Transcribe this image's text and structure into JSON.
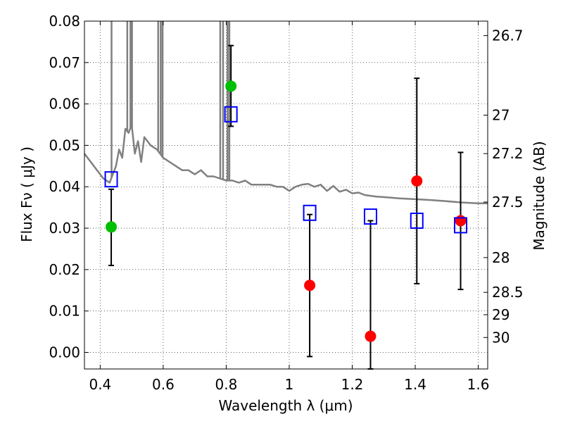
{
  "chart_data": {
    "type": "scatter",
    "xlabel": "Wavelength  λ (μm)",
    "ylabel": "Flux  Fν  ( μJy )",
    "ylabel_right": "Magnitude (AB)",
    "xlim": [
      0.35,
      1.63
    ],
    "ylim": [
      -0.004,
      0.08
    ],
    "grid": true,
    "x_ticks": [
      {
        "value": 0.4,
        "label": "0.4"
      },
      {
        "value": 0.6,
        "label": "0.6"
      },
      {
        "value": 0.8,
        "label": "0.8"
      },
      {
        "value": 1.0,
        "label": "1"
      },
      {
        "value": 1.2,
        "label": "1.2"
      },
      {
        "value": 1.4,
        "label": "1.4"
      },
      {
        "value": 1.6,
        "label": "1.6"
      }
    ],
    "y_ticks": [
      {
        "value": 0.0,
        "label": "0.00"
      },
      {
        "value": 0.01,
        "label": "0.01"
      },
      {
        "value": 0.02,
        "label": "0.02"
      },
      {
        "value": 0.03,
        "label": "0.03"
      },
      {
        "value": 0.04,
        "label": "0.04"
      },
      {
        "value": 0.05,
        "label": "0.05"
      },
      {
        "value": 0.06,
        "label": "0.06"
      },
      {
        "value": 0.07,
        "label": "0.07"
      },
      {
        "value": 0.08,
        "label": "0.08"
      }
    ],
    "right_ticks": [
      {
        "flux": 0.0765,
        "label": "26.7"
      },
      {
        "flux": 0.0573,
        "label": "27"
      },
      {
        "flux": 0.048,
        "label": "27.2"
      },
      {
        "flux": 0.0363,
        "label": "27.5"
      },
      {
        "flux": 0.0229,
        "label": "28"
      },
      {
        "flux": 0.0145,
        "label": "28.5"
      },
      {
        "flux": 0.0091,
        "label": "29"
      },
      {
        "flux": 0.0036,
        "label": "30"
      }
    ],
    "model_spectrum": {
      "color": "#808080",
      "x": [
        0.35,
        0.37,
        0.39,
        0.41,
        0.43,
        0.44,
        0.45,
        0.46,
        0.47,
        0.48,
        0.49,
        0.5,
        0.51,
        0.52,
        0.53,
        0.54,
        0.55,
        0.56,
        0.58,
        0.6,
        0.62,
        0.64,
        0.66,
        0.68,
        0.7,
        0.72,
        0.74,
        0.76,
        0.78,
        0.8,
        0.82,
        0.84,
        0.86,
        0.88,
        0.9,
        0.92,
        0.94,
        0.96,
        0.98,
        1.0,
        1.02,
        1.04,
        1.06,
        1.08,
        1.1,
        1.12,
        1.14,
        1.16,
        1.18,
        1.2,
        1.22,
        1.24,
        1.26,
        1.28,
        1.3,
        1.35,
        1.4,
        1.45,
        1.5,
        1.55,
        1.6,
        1.63
      ],
      "y": [
        0.048,
        0.046,
        0.044,
        0.042,
        0.041,
        0.043,
        0.045,
        0.049,
        0.047,
        0.054,
        0.053,
        0.055,
        0.048,
        0.051,
        0.046,
        0.052,
        0.051,
        0.05,
        0.049,
        0.047,
        0.046,
        0.045,
        0.044,
        0.044,
        0.043,
        0.044,
        0.0425,
        0.0425,
        0.042,
        0.0415,
        0.0415,
        0.041,
        0.0415,
        0.0405,
        0.0405,
        0.0405,
        0.0405,
        0.04,
        0.04,
        0.039,
        0.04,
        0.0405,
        0.0407,
        0.04,
        0.0405,
        0.039,
        0.0402,
        0.0388,
        0.0393,
        0.0384,
        0.0386,
        0.038,
        0.0378,
        0.0376,
        0.0375,
        0.0372,
        0.037,
        0.0368,
        0.0365,
        0.0362,
        0.036,
        0.036
      ],
      "spikes": [
        {
          "x": 0.436,
          "y_top": 0.08
        },
        {
          "x": 0.486,
          "y_top": 0.08
        },
        {
          "x": 0.496,
          "y_top": 0.08
        },
        {
          "x": 0.501,
          "y_top": 0.08
        },
        {
          "x": 0.584,
          "y_top": 0.08
        },
        {
          "x": 0.592,
          "y_top": 0.08
        },
        {
          "x": 0.598,
          "y_top": 0.08
        },
        {
          "x": 0.781,
          "y_top": 0.08
        },
        {
          "x": 0.79,
          "y_top": 0.08
        },
        {
          "x": 0.804,
          "y_top": 0.08
        },
        {
          "x": 0.81,
          "y_top": 0.08
        }
      ]
    },
    "series": [
      {
        "marker": "circle",
        "color": "#00bf00",
        "points": [
          {
            "x": 0.435,
            "y": 0.0303,
            "err_low": 0.021,
            "err_high": 0.0394
          },
          {
            "x": 0.815,
            "y": 0.0643,
            "err_low": 0.0546,
            "err_high": 0.0741
          }
        ]
      },
      {
        "marker": "circle",
        "color": "#ff0000",
        "points": [
          {
            "x": 1.065,
            "y": 0.0162,
            "err_low": -0.001,
            "err_high": 0.0333
          },
          {
            "x": 1.258,
            "y": 0.0039,
            "err_low": -0.004,
            "err_high": 0.0318
          },
          {
            "x": 1.405,
            "y": 0.0414,
            "err_low": 0.0166,
            "err_high": 0.0662
          },
          {
            "x": 1.544,
            "y": 0.0318,
            "err_low": 0.0152,
            "err_high": 0.0483
          }
        ]
      },
      {
        "marker": "square-open",
        "color": "#0000ff",
        "points": [
          {
            "x": 0.435,
            "y": 0.0418
          },
          {
            "x": 0.815,
            "y": 0.0575
          },
          {
            "x": 1.065,
            "y": 0.0337
          },
          {
            "x": 1.258,
            "y": 0.0328
          },
          {
            "x": 1.405,
            "y": 0.0318
          },
          {
            "x": 1.544,
            "y": 0.0307
          }
        ]
      }
    ]
  }
}
